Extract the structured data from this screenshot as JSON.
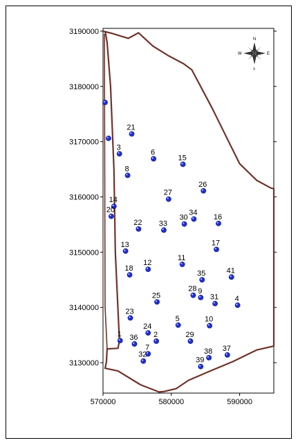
{
  "map": {
    "x_ticks": [
      "570000",
      "580000",
      "590000"
    ],
    "y_ticks": [
      "3130000",
      "3140000",
      "3150000",
      "3160000",
      "3170000",
      "3180000",
      "3190000"
    ],
    "compass": {
      "n": "N",
      "s": "s",
      "e": "E",
      "w": "W"
    },
    "point_color": "#1f2fd6",
    "boundary_color": "#6e3228"
  },
  "chart_data": {
    "type": "scatter",
    "xlim": [
      570000,
      595000
    ],
    "ylim": [
      3124500,
      3190500
    ],
    "x_ticks": [
      570000,
      580000,
      590000
    ],
    "y_ticks": [
      3130000,
      3140000,
      3150000,
      3160000,
      3170000,
      3180000,
      3190000
    ],
    "boundary": [
      [
        570000,
        3190000
      ],
      [
        571300,
        3189600
      ],
      [
        573700,
        3188700
      ],
      [
        575200,
        3189700
      ],
      [
        577300,
        3187300
      ],
      [
        579500,
        3185600
      ],
      [
        581800,
        3184100
      ],
      [
        583000,
        3183000
      ],
      [
        586000,
        3176000
      ],
      [
        588000,
        3171000
      ],
      [
        590000,
        3166000
      ],
      [
        592500,
        3163000
      ],
      [
        594600,
        3161600
      ],
      [
        595000,
        3161500
      ],
      [
        595000,
        3133000
      ],
      [
        592500,
        3132300
      ],
      [
        589000,
        3130200
      ],
      [
        585500,
        3128400
      ],
      [
        582500,
        3126800
      ],
      [
        580700,
        3125300
      ],
      [
        579000,
        3124800
      ],
      [
        578200,
        3124700
      ],
      [
        575500,
        3126000
      ],
      [
        572200,
        3128500
      ],
      [
        570300,
        3129000
      ],
      [
        570500,
        3130100
      ],
      [
        570600,
        3132500
      ],
      [
        572200,
        3132600
      ],
      [
        572400,
        3134000
      ],
      [
        571800,
        3150000
      ],
      [
        571600,
        3165000
      ],
      [
        571100,
        3180000
      ],
      [
        570600,
        3188000
      ],
      [
        570300,
        3190000
      ]
    ],
    "boundary_inner": [
      [
        570200,
        3189500
      ],
      [
        570300,
        3140000
      ],
      [
        570600,
        3132500
      ]
    ],
    "points": [
      {
        "label": "",
        "x": 570300,
        "y": 3177100
      },
      {
        "label": "",
        "x": 570800,
        "y": 3170600
      },
      {
        "label": "21",
        "x": 574200,
        "y": 3171400
      },
      {
        "label": "3",
        "x": 572400,
        "y": 3167800
      },
      {
        "label": "6",
        "x": 577400,
        "y": 3166900
      },
      {
        "label": "15",
        "x": 581700,
        "y": 3165900
      },
      {
        "label": "8",
        "x": 573600,
        "y": 3163900
      },
      {
        "label": "26",
        "x": 584700,
        "y": 3161100
      },
      {
        "label": "27",
        "x": 579600,
        "y": 3159600
      },
      {
        "label": "14",
        "x": 571600,
        "y": 3158300
      },
      {
        "label": "20",
        "x": 571200,
        "y": 3156500
      },
      {
        "label": "30",
        "x": 581900,
        "y": 3155100
      },
      {
        "label": "34",
        "x": 583300,
        "y": 3156000
      },
      {
        "label": "16",
        "x": 586900,
        "y": 3155200
      },
      {
        "label": "22",
        "x": 575200,
        "y": 3154200
      },
      {
        "label": "33",
        "x": 578900,
        "y": 3154000
      },
      {
        "label": "13",
        "x": 573300,
        "y": 3150200
      },
      {
        "label": "17",
        "x": 586600,
        "y": 3150500
      },
      {
        "label": "11",
        "x": 581600,
        "y": 3147800
      },
      {
        "label": "12",
        "x": 576600,
        "y": 3146900
      },
      {
        "label": "18",
        "x": 573900,
        "y": 3145900
      },
      {
        "label": "35",
        "x": 584500,
        "y": 3145000
      },
      {
        "label": "41",
        "x": 588800,
        "y": 3145500
      },
      {
        "label": "28",
        "x": 583200,
        "y": 3142200
      },
      {
        "label": "9",
        "x": 584300,
        "y": 3141800
      },
      {
        "label": "25",
        "x": 577900,
        "y": 3141000
      },
      {
        "label": "31",
        "x": 586400,
        "y": 3140700
      },
      {
        "label": "4",
        "x": 589700,
        "y": 3140400
      },
      {
        "label": "23",
        "x": 574000,
        "y": 3138100
      },
      {
        "label": "5",
        "x": 581000,
        "y": 3136800
      },
      {
        "label": "10",
        "x": 585600,
        "y": 3136700
      },
      {
        "label": "24",
        "x": 576600,
        "y": 3135400
      },
      {
        "label": "1",
        "x": 572500,
        "y": 3134000
      },
      {
        "label": "2",
        "x": 577800,
        "y": 3133900
      },
      {
        "label": "29",
        "x": 582800,
        "y": 3133900
      },
      {
        "label": "36",
        "x": 574600,
        "y": 3133400
      },
      {
        "label": "7",
        "x": 576600,
        "y": 3131600
      },
      {
        "label": "32",
        "x": 575900,
        "y": 3130300
      },
      {
        "label": "38",
        "x": 585500,
        "y": 3130900
      },
      {
        "label": "37",
        "x": 588200,
        "y": 3131400
      },
      {
        "label": "39",
        "x": 584300,
        "y": 3129300
      }
    ]
  }
}
